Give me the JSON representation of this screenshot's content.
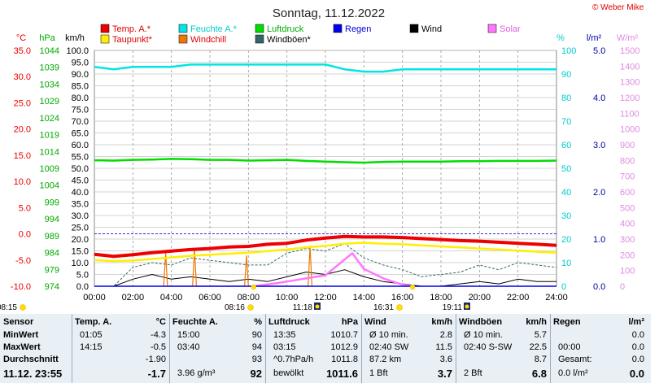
{
  "title": "Sonntag, 11.12.2022",
  "copyright": "© Weber Mike",
  "colors": {
    "temp": "#ee0000",
    "dew": "#ffee00",
    "humidity": "#00e5e5",
    "windchill": "#ee7700",
    "pressure": "#00dd00",
    "gust": "#336666",
    "rain": "#0000ee",
    "wind": "#000000",
    "solar": "#ff77ff",
    "rainaxis": "#0000aa",
    "solaraxis": "#e08ae0",
    "panel_bg": "#e8f0f6"
  },
  "axis_units": {
    "temp": "°C",
    "pressure": "hPa",
    "wind": "km/h",
    "humidity": "%",
    "rain": "l/m²",
    "solar": "W/m²"
  },
  "legend": [
    {
      "label": "Temp. A.*",
      "color": "#ee0000",
      "textcolor": "#dd0000"
    },
    {
      "label": "Feuchte A.*",
      "color": "#00e5e5",
      "textcolor": "#00cccc"
    },
    {
      "label": "Luftdruck",
      "color": "#00dd00",
      "textcolor": "#00aa00"
    },
    {
      "label": "Regen",
      "color": "#0000ee",
      "textcolor": "#0000dd"
    },
    {
      "label": "Wind",
      "color": "#000000",
      "textcolor": "#000000"
    },
    {
      "label": "Solar",
      "color": "#ff77ff",
      "textcolor": "#e060e0"
    },
    {
      "label": "Taupunkt*",
      "color": "#ffee00",
      "textcolor": "#dd0000"
    },
    {
      "label": "Windchill",
      "color": "#ee7700",
      "textcolor": "#dd0000"
    },
    {
      "label": "Windböen*",
      "color": "#336666",
      "textcolor": "#000000"
    }
  ],
  "chart_data": {
    "type": "line",
    "title": "Sonntag, 11.12.2022",
    "x_ticks": [
      "00:00",
      "02:00",
      "04:00",
      "06:00",
      "08:00",
      "10:00",
      "12:00",
      "14:00",
      "16:00",
      "18:00",
      "20:00",
      "22:00",
      "24:00"
    ],
    "axes": {
      "temp": {
        "unit": "°C",
        "range": [
          -10,
          35
        ],
        "ticks": [
          "35.0",
          "30.0",
          "25.0",
          "20.0",
          "15.0",
          "10.0",
          "5.0",
          "0.0",
          "-5.0",
          "-10.0"
        ]
      },
      "pressure": {
        "unit": "hPa",
        "range": [
          974,
          1044
        ],
        "ticks": [
          "1044",
          "1039",
          "1034",
          "1029",
          "1024",
          "1019",
          "1014",
          "1009",
          "1004",
          "999",
          "994",
          "989",
          "984",
          "979",
          "974"
        ]
      },
      "wind": {
        "unit": "km/h",
        "range": [
          0,
          100
        ],
        "ticks": [
          "100.0",
          "95.0",
          "90.0",
          "85.0",
          "80.0",
          "75.0",
          "70.0",
          "65.0",
          "60.0",
          "55.0",
          "50.0",
          "45.0",
          "40.0",
          "35.0",
          "30.0",
          "25.0",
          "20.0",
          "15.0",
          "10.0",
          "5.0",
          "0.0"
        ]
      },
      "humidity": {
        "unit": "%",
        "range": [
          0,
          100
        ],
        "ticks": [
          "100",
          "90",
          "80",
          "70",
          "60",
          "50",
          "40",
          "30",
          "20",
          "10",
          "0"
        ]
      },
      "rain": {
        "unit": "l/m²",
        "range": [
          0,
          5
        ],
        "ticks": [
          "5.0",
          "4.0",
          "3.0",
          "2.0",
          "1.0",
          "0.0"
        ]
      },
      "solar": {
        "unit": "W/m²",
        "range": [
          0,
          1500
        ],
        "ticks": [
          "1500",
          "1400",
          "1300",
          "1200",
          "1100",
          "1000",
          "900",
          "800",
          "700",
          "600",
          "500",
          "400",
          "300",
          "200",
          "100",
          "0"
        ]
      }
    },
    "series": [
      {
        "name": "Temp. A.*",
        "axis": "temp",
        "x": [
          0,
          1,
          2,
          3,
          4,
          5,
          6,
          7,
          8,
          9,
          10,
          11,
          12,
          13,
          14,
          15,
          16,
          17,
          18,
          19,
          20,
          21,
          22,
          23,
          24
        ],
        "values": [
          -3.9,
          -4.3,
          -4.0,
          -3.6,
          -3.3,
          -3.0,
          -2.8,
          -2.5,
          -2.4,
          -2.0,
          -1.8,
          -1.2,
          -0.8,
          -0.5,
          -0.6,
          -0.6,
          -0.7,
          -0.9,
          -1.1,
          -1.3,
          -1.4,
          -1.6,
          -1.8,
          -2.0,
          -2.2
        ]
      },
      {
        "name": "Taupunkt*",
        "axis": "temp",
        "x": [
          0,
          1,
          2,
          3,
          4,
          5,
          6,
          7,
          8,
          9,
          10,
          11,
          12,
          13,
          14,
          15,
          16,
          17,
          18,
          19,
          20,
          21,
          22,
          23,
          24
        ],
        "values": [
          -5.0,
          -5.2,
          -5.1,
          -4.8,
          -4.5,
          -4.2,
          -4.0,
          -3.8,
          -3.6,
          -3.3,
          -3.0,
          -2.6,
          -2.3,
          -1.9,
          -1.7,
          -1.9,
          -2.0,
          -2.2,
          -2.4,
          -2.6,
          -2.8,
          -3.0,
          -3.2,
          -3.4,
          -3.6
        ]
      },
      {
        "name": "Feuchte A.*",
        "axis": "humidity",
        "x": [
          0,
          1,
          2,
          3,
          4,
          5,
          6,
          7,
          8,
          9,
          10,
          11,
          12,
          13,
          14,
          15,
          16,
          17,
          18,
          19,
          20,
          21,
          22,
          23,
          24
        ],
        "values": [
          93,
          92,
          93,
          93,
          93,
          94,
          94,
          94,
          94,
          94,
          94,
          94,
          94,
          92,
          91,
          91,
          92,
          92,
          92,
          92,
          92,
          92,
          92,
          92,
          92
        ]
      },
      {
        "name": "Luftdruck",
        "axis": "pressure",
        "x": [
          0,
          1,
          2,
          3,
          4,
          5,
          6,
          7,
          8,
          9,
          10,
          11,
          12,
          13,
          14,
          15,
          16,
          17,
          18,
          19,
          20,
          21,
          22,
          23,
          24
        ],
        "values": [
          1011.4,
          1011.3,
          1011.5,
          1011.6,
          1011.8,
          1011.7,
          1011.5,
          1011.5,
          1011.3,
          1011.4,
          1011.5,
          1011.2,
          1011.0,
          1010.8,
          1010.7,
          1010.9,
          1011.0,
          1011.0,
          1011.0,
          1011.1,
          1011.1,
          1011.2,
          1011.2,
          1011.2,
          1011.3
        ]
      },
      {
        "name": "Wind",
        "axis": "wind",
        "x": [
          0,
          1,
          2,
          3,
          4,
          5,
          6,
          7,
          8,
          9,
          10,
          11,
          12,
          13,
          14,
          15,
          16,
          17,
          18,
          19,
          20,
          21,
          22,
          23,
          24
        ],
        "values": [
          0,
          0,
          3,
          5,
          3,
          4,
          3,
          2,
          3,
          2,
          4,
          6,
          5,
          7,
          4,
          2,
          1,
          0,
          0,
          1,
          2,
          1,
          3,
          2,
          2
        ]
      },
      {
        "name": "Windböen*",
        "axis": "wind",
        "x": [
          0,
          1,
          2,
          3,
          4,
          5,
          6,
          7,
          8,
          9,
          10,
          11,
          12,
          13,
          14,
          15,
          16,
          17,
          18,
          19,
          20,
          21,
          22,
          23,
          24
        ],
        "values": [
          0,
          0,
          8,
          10,
          9,
          12,
          11,
          10,
          9,
          9,
          14,
          16,
          15,
          18,
          12,
          9,
          7,
          4,
          5,
          6,
          9,
          7,
          10,
          9,
          8
        ]
      },
      {
        "name": "Windchill",
        "axis": "wind",
        "x": [
          3.6,
          3.7,
          3.8,
          5.1,
          5.2,
          5.3,
          7.8,
          7.9,
          8.0,
          11.1,
          11.2,
          11.3
        ],
        "values": [
          0,
          14,
          0,
          0,
          16,
          0,
          0,
          13,
          0,
          0,
          17,
          0
        ]
      },
      {
        "name": "Solar",
        "axis": "solar",
        "x": [
          8.27,
          9.5,
          10.5,
          11.5,
          12.0,
          12.4,
          12.8,
          13.1,
          13.4,
          13.7,
          14.0,
          14.5,
          15.0,
          15.5,
          16.0,
          16.52
        ],
        "values": [
          0,
          20,
          40,
          60,
          70,
          110,
          150,
          180,
          210,
          160,
          110,
          80,
          50,
          30,
          10,
          0
        ]
      },
      {
        "name": "Regen",
        "axis": "rain",
        "x": [
          0,
          24
        ],
        "values": [
          0,
          0
        ]
      }
    ],
    "reference_lines": [
      {
        "axis": "temp",
        "value": 0.0,
        "style": "dashed",
        "color": "blue"
      }
    ],
    "time_markers": [
      {
        "time": "08:15",
        "label": "08:15"
      },
      {
        "time": "08:16",
        "label": "08:16"
      },
      {
        "time": "11:18",
        "label": "11:18"
      },
      {
        "time": "16:31",
        "label": "16:31"
      },
      {
        "time": "19:11",
        "label": "19:11"
      }
    ],
    "grid": true
  },
  "summary": {
    "columns": [
      {
        "header": [
          "Sensor"
        ],
        "rows": [
          [
            "MinWert"
          ],
          [
            "MaxWert"
          ],
          [
            "Durchschnitt"
          ],
          [
            "11.12. 23:55"
          ]
        ]
      },
      {
        "header": [
          "Temp. A.",
          "°C"
        ],
        "rows": [
          [
            "01:05",
            "-4.3"
          ],
          [
            "14:15",
            "-0.5"
          ],
          [
            "",
            "-1.90"
          ],
          [
            "",
            "-1.7"
          ]
        ]
      },
      {
        "header": [
          "Feuchte A.",
          "%"
        ],
        "rows": [
          [
            "15:00",
            "90"
          ],
          [
            "03:40",
            "94"
          ],
          [
            "",
            "93"
          ],
          [
            "3.96 g/m³",
            "92"
          ]
        ]
      },
      {
        "header": [
          "Luftdruck",
          "hPa"
        ],
        "rows": [
          [
            "13:35",
            "1010.7"
          ],
          [
            "03:15",
            "1012.9"
          ],
          [
            "^0.7hPa/h",
            "1011.8"
          ],
          [
            "bewölkt",
            "1011.6"
          ]
        ]
      },
      {
        "header": [
          "Wind",
          "km/h"
        ],
        "rows": [
          [
            "Ø 10 min.",
            "2.8"
          ],
          [
            "02:40  SW",
            "11.5"
          ],
          [
            "87.2 km",
            "3.6"
          ],
          [
            "1 Bft",
            "3.7"
          ]
        ]
      },
      {
        "header": [
          "Windböen",
          "km/h"
        ],
        "rows": [
          [
            "Ø 10 min.",
            "5.7"
          ],
          [
            "02:40  S-SW",
            "22.5"
          ],
          [
            "",
            "8.7"
          ],
          [
            "2 Bft",
            "6.8"
          ]
        ]
      },
      {
        "header": [
          "Regen",
          "l/m²"
        ],
        "rows": [
          [
            "",
            "0.0"
          ],
          [
            "00:00",
            "0.0"
          ],
          [
            "Gesamt:",
            "0.0"
          ],
          [
            "0.0 l/m²",
            "0.0"
          ]
        ]
      }
    ]
  }
}
